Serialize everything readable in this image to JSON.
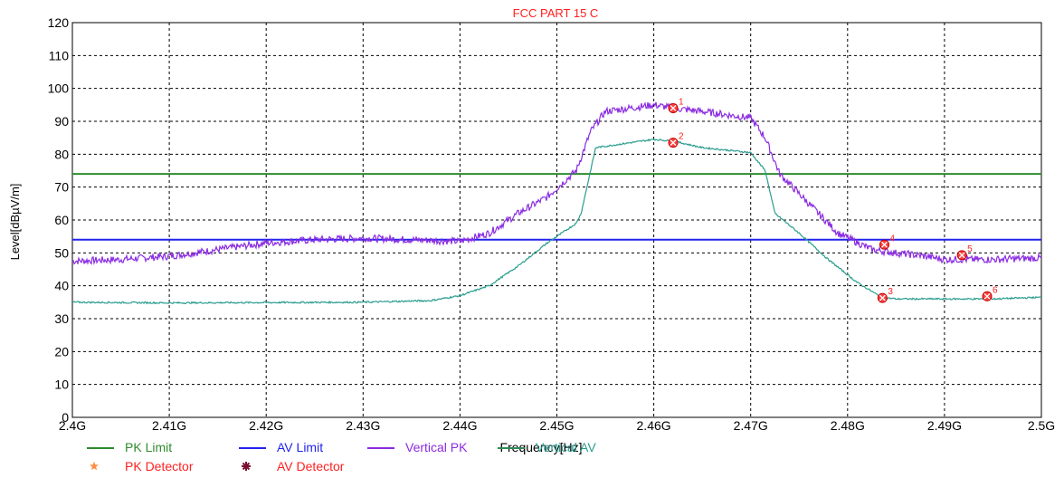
{
  "chart_data": {
    "type": "line",
    "title": "FCC PART 15 C",
    "xlabel": "Frequency[Hz]",
    "ylabel": "Level[dBµV/m]",
    "xlim": [
      2.4,
      2.5
    ],
    "ylim": [
      0,
      120
    ],
    "grid": true,
    "x_ticks": [
      "2.4G",
      "2.41G",
      "2.42G",
      "2.43G",
      "2.44G",
      "2.45G",
      "2.46G",
      "2.47G",
      "2.48G",
      "2.49G",
      "2.5G"
    ],
    "y_ticks": [
      "0",
      "10",
      "20",
      "30",
      "40",
      "50",
      "60",
      "70",
      "80",
      "90",
      "100",
      "110",
      "120"
    ],
    "limits": [
      {
        "name": "PK Limit",
        "value": 74,
        "color": "#2e8b2e"
      },
      {
        "name": "AV Limit",
        "value": 54,
        "color": "#2222ee"
      }
    ],
    "series": [
      {
        "name": "Vertical PK",
        "color": "#8a2be2",
        "x": [
          2.4,
          2.405,
          2.41,
          2.415,
          2.42,
          2.425,
          2.43,
          2.435,
          2.44,
          2.443,
          2.446,
          2.449,
          2.452,
          2.4535,
          2.455,
          2.46,
          2.462,
          2.465,
          2.47,
          2.4715,
          2.473,
          2.476,
          2.479,
          2.4825,
          2.485,
          2.488,
          2.49,
          2.495,
          2.5
        ],
        "values": [
          47.5,
          48,
          49,
          51,
          53,
          54,
          54.5,
          54,
          53.5,
          56,
          62,
          67,
          75,
          87,
          93,
          95,
          94,
          93,
          91,
          85,
          74,
          65,
          56,
          51,
          50,
          49,
          48,
          48,
          48.5
        ]
      },
      {
        "name": "Vertical AV",
        "color": "#2a9d8f",
        "x": [
          2.4,
          2.41,
          2.42,
          2.43,
          2.437,
          2.44,
          2.443,
          2.446,
          2.449,
          2.452,
          2.4525,
          2.454,
          2.46,
          2.462,
          2.465,
          2.47,
          2.4715,
          2.4725,
          2.475,
          2.478,
          2.481,
          2.4835,
          2.485,
          2.49,
          2.495,
          2.5
        ],
        "values": [
          35,
          34.8,
          34.9,
          35,
          35.5,
          37,
          40,
          46,
          53,
          59,
          62,
          82,
          84.5,
          84,
          82,
          80.5,
          75,
          62,
          56,
          48,
          41,
          36.5,
          36,
          36,
          36,
          36.5
        ]
      }
    ],
    "markers": [
      {
        "label": "1",
        "x": 2.462,
        "y": 94.0
      },
      {
        "label": "2",
        "x": 2.462,
        "y": 83.5
      },
      {
        "label": "3",
        "x": 2.4836,
        "y": 36.3
      },
      {
        "label": "4",
        "x": 2.4838,
        "y": 52.5
      },
      {
        "label": "5",
        "x": 2.4918,
        "y": 49.3
      },
      {
        "label": "6",
        "x": 2.4944,
        "y": 36.8
      }
    ],
    "legend": {
      "placement": "bottom-left",
      "entries": [
        {
          "name": "PK Limit",
          "symbol": "line",
          "color": "#2e8b2e",
          "text_color": "#2e8b2e"
        },
        {
          "name": "AV Limit",
          "symbol": "line",
          "color": "#2222ee",
          "text_color": "#2222ee"
        },
        {
          "name": "Vertical PK",
          "symbol": "line",
          "color": "#8a2be2",
          "text_color": "#8a2be2"
        },
        {
          "name": "Vertical AV",
          "symbol": "line",
          "color": "#2e8b57",
          "text_color": "#2a9d8f"
        },
        {
          "name": "PK Detector",
          "symbol": "star",
          "color": "#ff8c40",
          "text_color": "#ff2020"
        },
        {
          "name": "AV Detector",
          "symbol": "asterisk",
          "color": "#7a1030",
          "text_color": "#ff2020"
        }
      ]
    }
  }
}
